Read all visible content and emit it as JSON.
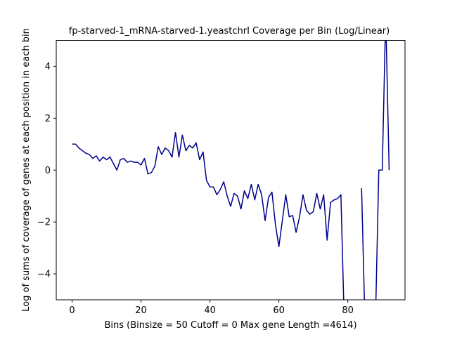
{
  "chart_data": {
    "type": "line",
    "title": "fp-starved-1_mRNA-starved-1.yeastchrI Coverage per Bin (Log/Linear)",
    "xlabel": "Bins  (Binsize = 50 Cutoff = 0 Max gene Length =4614)",
    "ylabel": "Log of sums of coverage of genes at each position in each bin",
    "xlim": [
      -4.6,
      96.6
    ],
    "ylim": [
      -5,
      5
    ],
    "xticks": [
      0,
      20,
      40,
      60,
      80
    ],
    "yticks": [
      -4,
      -2,
      0,
      2,
      4
    ],
    "grid": false,
    "line_color": "#00008b",
    "series": [
      {
        "x": [
          0,
          1,
          2,
          3,
          4,
          5,
          6,
          7,
          8,
          9,
          10,
          11,
          12,
          13,
          14,
          15,
          16,
          17,
          18,
          19,
          20,
          21,
          22,
          23,
          24,
          25,
          26,
          27,
          28,
          29,
          30,
          31,
          32,
          33,
          34,
          35,
          36,
          37,
          38,
          39,
          40,
          41,
          42,
          43,
          44,
          45,
          46,
          47,
          48,
          49,
          50,
          51,
          52,
          53,
          54,
          55,
          56,
          57,
          58,
          59,
          60,
          61,
          62,
          63,
          64,
          65,
          66,
          67,
          68,
          69,
          70,
          71,
          72,
          73,
          74,
          75,
          76,
          77,
          78,
          79,
          80,
          81,
          82,
          83,
          84,
          85,
          86,
          87,
          88,
          89,
          90,
          91,
          92
        ],
        "values": [
          1.0,
          1.0,
          0.85,
          0.75,
          0.65,
          0.6,
          0.45,
          0.55,
          0.35,
          0.5,
          0.4,
          0.5,
          0.25,
          0.0,
          0.4,
          0.45,
          0.3,
          0.35,
          0.3,
          0.3,
          0.2,
          0.45,
          -0.15,
          -0.1,
          0.15,
          0.9,
          0.6,
          0.85,
          0.75,
          0.5,
          1.45,
          0.5,
          1.35,
          0.75,
          0.95,
          0.85,
          1.05,
          0.4,
          0.7,
          -0.4,
          -0.65,
          -0.65,
          -0.95,
          -0.75,
          -0.45,
          -1.0,
          -1.4,
          -0.9,
          -1.0,
          -1.5,
          -0.8,
          -1.1,
          -0.55,
          -1.15,
          -0.55,
          -0.95,
          -1.95,
          -1.05,
          -0.85,
          -2.1,
          -2.95,
          -1.95,
          -0.95,
          -1.8,
          -1.75,
          -2.4,
          -1.8,
          -0.95,
          -1.55,
          -1.7,
          -1.6,
          -0.9,
          -1.5,
          -0.95,
          -2.7,
          -1.25,
          -1.15,
          -1.1,
          -0.95,
          -6.0,
          null,
          null,
          null,
          null,
          -0.7,
          -6.0,
          null,
          null,
          -6.0,
          0.0,
          0.0,
          6.0,
          0.0
        ]
      }
    ]
  }
}
